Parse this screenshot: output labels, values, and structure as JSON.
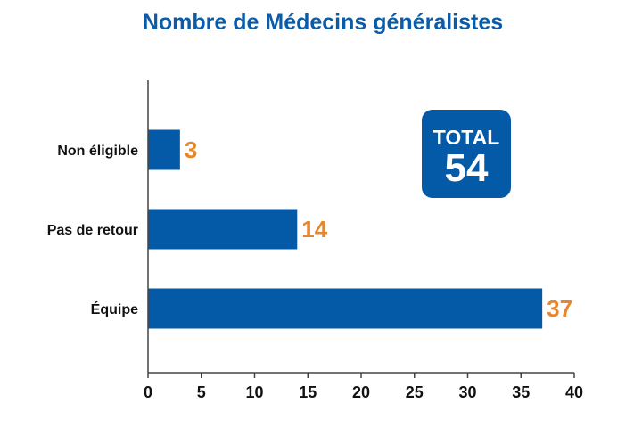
{
  "chart_data": {
    "type": "bar",
    "orientation": "horizontal",
    "title": "Nombre de Médecins généralistes",
    "categories": [
      "Non éligible",
      "Pas de retour",
      "Équipe"
    ],
    "values": [
      3,
      14,
      37
    ],
    "x_ticks": [
      "0",
      "5",
      "10",
      "15",
      "20",
      "25",
      "30",
      "35",
      "40"
    ],
    "xlim": [
      0,
      40
    ],
    "xlabel": "",
    "ylabel": "",
    "grid": false,
    "legend": "none",
    "bar_color": "#045aa6",
    "value_label_color": "#e8862a",
    "title_color": "#0b5ca8"
  },
  "total_box": {
    "label": "TOTAL",
    "value": "54",
    "color": "#045aa6"
  }
}
